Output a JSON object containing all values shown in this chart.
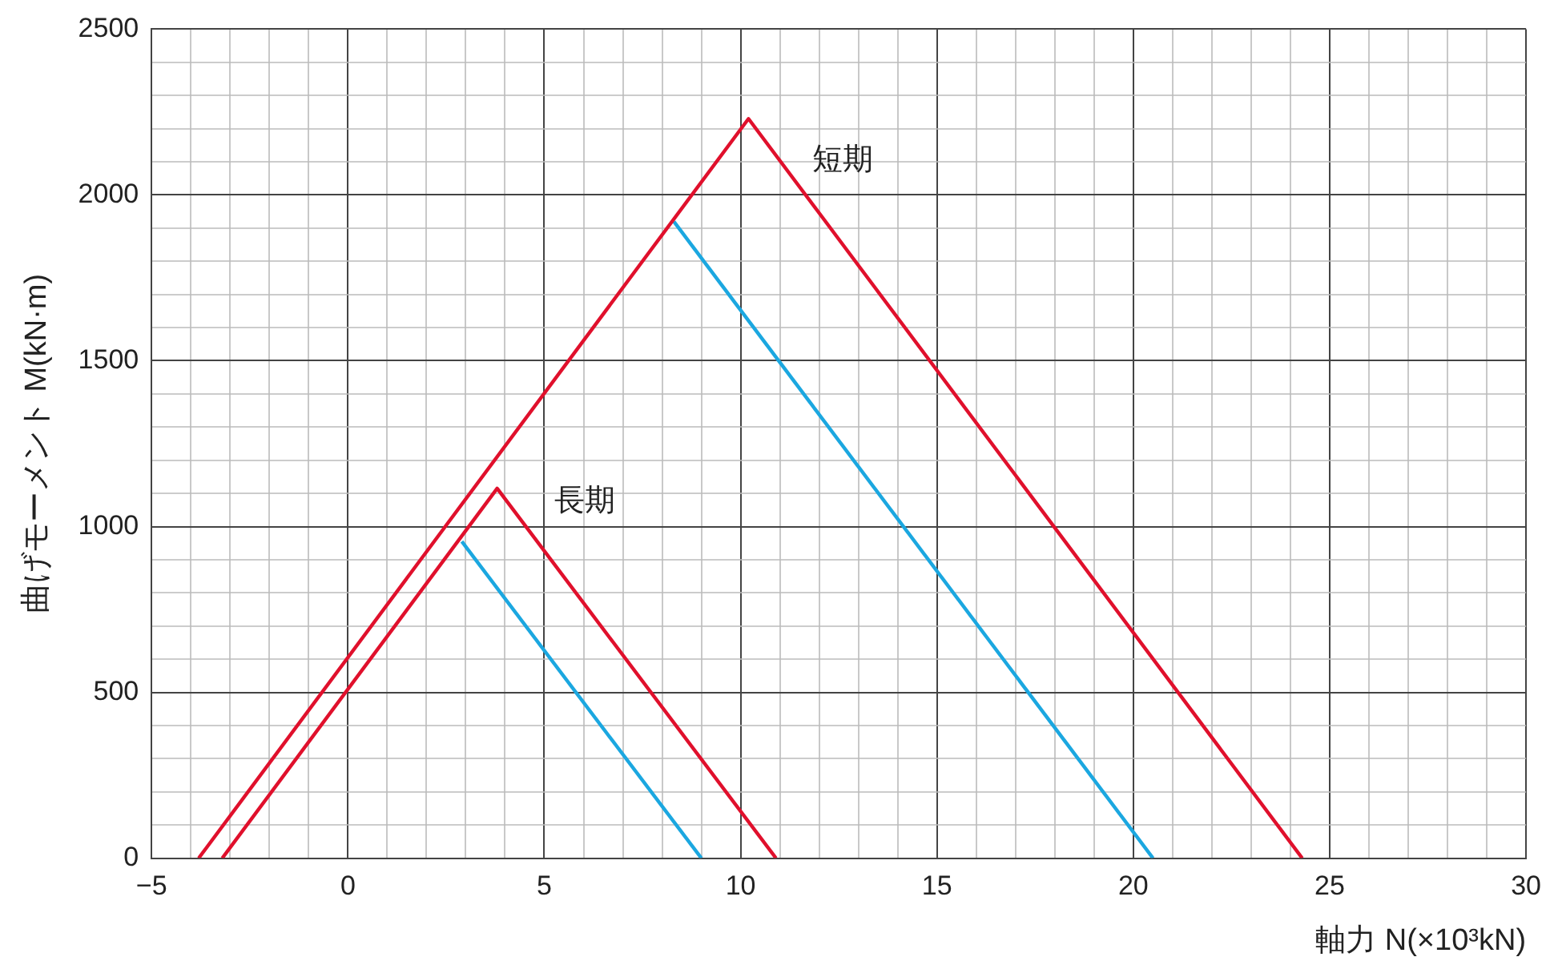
{
  "chart_data": {
    "type": "line",
    "xlabel": "軸力 N(×10³kN)",
    "ylabel": "曲げモーメント M(kN·m)",
    "xlim": [
      -5,
      30
    ],
    "ylim": [
      0,
      2500
    ],
    "xticks": [
      {
        "value": -5,
        "label": "−5"
      },
      {
        "value": -4,
        "label": null
      },
      {
        "value": -3,
        "label": null
      },
      {
        "value": -2,
        "label": null
      },
      {
        "value": -1,
        "label": null
      },
      0,
      {
        "value": 1,
        "label": null
      },
      {
        "value": 2,
        "label": null
      },
      {
        "value": 3,
        "label": null
      },
      {
        "value": 4,
        "label": null
      },
      5,
      {
        "value": 6,
        "label": null
      },
      {
        "value": 7,
        "label": null
      },
      {
        "value": 8,
        "label": null
      },
      {
        "value": 9,
        "label": null
      },
      10,
      {
        "value": 11,
        "label": null
      },
      {
        "value": 12,
        "label": null
      },
      {
        "value": 13,
        "label": null
      },
      {
        "value": 14,
        "label": null
      },
      15,
      {
        "value": 16,
        "label": null
      },
      {
        "value": 17,
        "label": null
      },
      {
        "value": 18,
        "label": null
      },
      {
        "value": 19,
        "label": null
      },
      20,
      {
        "value": 21,
        "label": null
      },
      {
        "value": 22,
        "label": null
      },
      {
        "value": 23,
        "label": null
      },
      {
        "value": 24,
        "label": null
      },
      25,
      {
        "value": 26,
        "label": null
      },
      {
        "value": 27,
        "label": null
      },
      {
        "value": 28,
        "label": null
      },
      {
        "value": 29,
        "label": null
      },
      30
    ],
    "yticks": [
      0,
      {
        "value": 100,
        "label": null
      },
      {
        "value": 200,
        "label": null
      },
      {
        "value": 300,
        "label": null
      },
      {
        "value": 400,
        "label": null
      },
      500,
      {
        "value": 600,
        "label": null
      },
      {
        "value": 700,
        "label": null
      },
      {
        "value": 800,
        "label": null
      },
      {
        "value": 900,
        "label": null
      },
      1000,
      {
        "value": 1100,
        "label": null
      },
      {
        "value": 1200,
        "label": null
      },
      {
        "value": 1300,
        "label": null
      },
      {
        "value": 1400,
        "label": null
      },
      1500,
      {
        "value": 1600,
        "label": null
      },
      {
        "value": 1700,
        "label": null
      },
      {
        "value": 1800,
        "label": null
      },
      {
        "value": 1900,
        "label": null
      },
      2000,
      {
        "value": 2100,
        "label": null
      },
      {
        "value": 2200,
        "label": null
      },
      {
        "value": 2300,
        "label": null
      },
      {
        "value": 2400,
        "label": null
      },
      2500
    ],
    "grid": true,
    "marker": "none",
    "line_style": "solid",
    "series": [
      {
        "color": "#e0102c",
        "x": [
          -3.8,
          10.2,
          24.3
        ],
        "values": [
          0,
          2230,
          0
        ]
      },
      {
        "color": "#1ba7e0",
        "x": [
          8.3,
          20.5
        ],
        "values": [
          1920,
          0
        ]
      },
      {
        "color": "#e0102c",
        "x": [
          -3.2,
          3.8,
          10.9
        ],
        "values": [
          0,
          1115,
          0
        ]
      },
      {
        "color": "#1ba7e0",
        "x": [
          2.9,
          9.0
        ],
        "values": [
          955,
          0
        ]
      }
    ],
    "annotations": [
      "短期",
      "長期"
    ]
  }
}
